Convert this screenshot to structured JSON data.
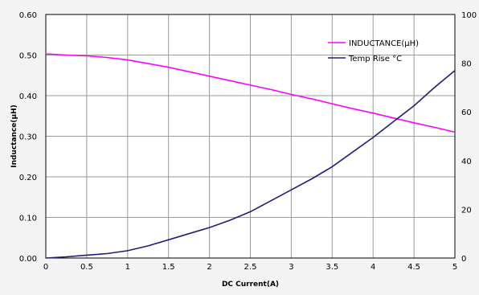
{
  "chart_data": {
    "type": "line",
    "xlabel": "DC Current(A)",
    "ylabel": "Inductance(µH)",
    "xlim": [
      0,
      5
    ],
    "ylim": [
      0,
      0.6
    ],
    "y2lim": [
      0,
      100
    ],
    "x_ticks": [
      "0",
      "0.5",
      "1",
      "1.5",
      "2",
      "2.5",
      "3",
      "3.5",
      "4",
      "4.5",
      "5"
    ],
    "y_ticks": [
      "0.00",
      "0.10",
      "0.20",
      "0.30",
      "0.40",
      "0.50",
      "0.60"
    ],
    "y2_ticks": [
      "0",
      "20",
      "40",
      "60",
      "80",
      "100"
    ],
    "grid": true,
    "legend_position": "top-right",
    "series": [
      {
        "name": "INDUCTANCE(µH)",
        "axis": "left",
        "color": "#ff00ff",
        "x": [
          0,
          0.25,
          0.5,
          0.75,
          1,
          1.25,
          1.5,
          1.75,
          2,
          2.25,
          2.5,
          2.75,
          3,
          3.25,
          3.5,
          3.75,
          4,
          4.25,
          4.5,
          4.75,
          5
        ],
        "y": [
          0.503,
          0.5,
          0.498,
          0.494,
          0.488,
          0.479,
          0.47,
          0.459,
          0.448,
          0.437,
          0.426,
          0.415,
          0.403,
          0.392,
          0.38,
          0.368,
          0.357,
          0.345,
          0.333,
          0.322,
          0.31
        ]
      },
      {
        "name": "Temp Rise °C",
        "axis": "right",
        "color": "#1f1f7a",
        "x": [
          0,
          0.25,
          0.5,
          0.75,
          1,
          1.25,
          1.5,
          1.75,
          2,
          2.25,
          2.5,
          2.75,
          3,
          3.25,
          3.5,
          3.75,
          4,
          4.25,
          4.5,
          4.75,
          5
        ],
        "y": [
          0,
          0.5,
          1.2,
          1.8,
          3,
          5,
          7.5,
          10,
          12.5,
          15.5,
          19,
          23.5,
          28,
          32.5,
          37.5,
          43.5,
          49.5,
          56,
          62.5,
          70,
          77
        ]
      }
    ]
  }
}
